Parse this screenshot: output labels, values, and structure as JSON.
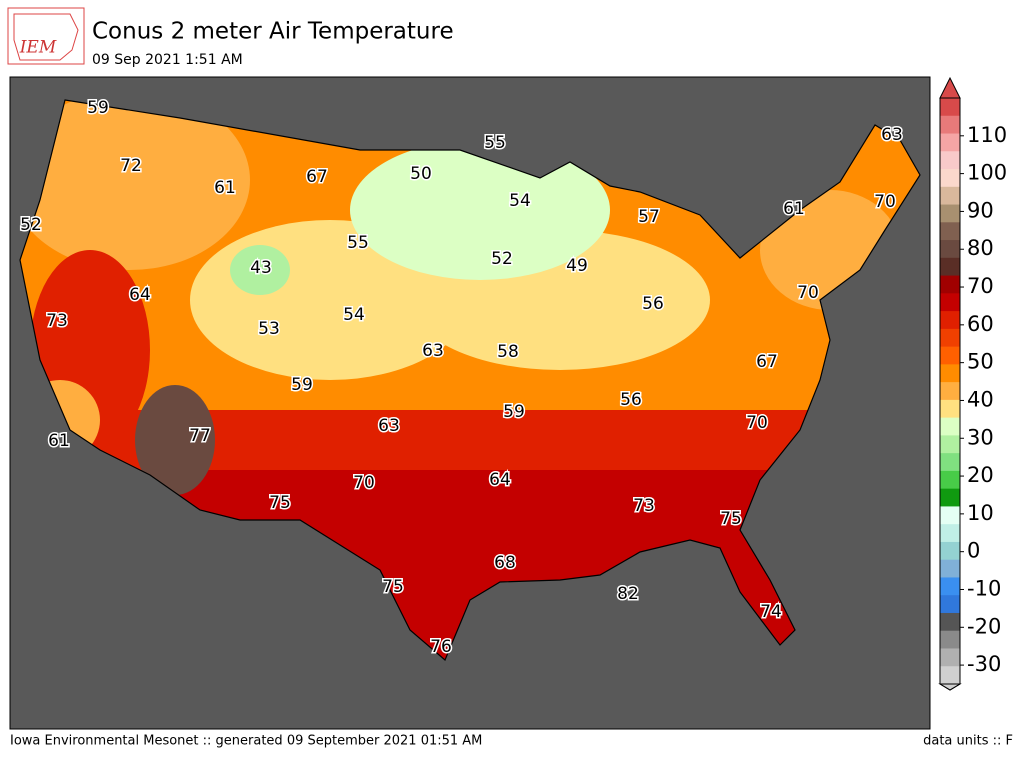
{
  "header": {
    "logo": "IEM",
    "title": "Conus 2 meter Air Temperature",
    "subtitle": "09 Sep 2021 1:51 AM"
  },
  "map": {
    "labels": [
      59,
      72,
      61,
      67,
      50,
      55,
      54,
      52,
      55,
      43,
      52,
      49,
      57,
      61,
      63,
      70,
      64,
      73,
      53,
      54,
      63,
      58,
      56,
      70,
      67,
      59,
      56,
      59,
      63,
      70,
      77,
      61,
      70,
      64,
      75,
      73,
      75,
      68,
      75,
      82,
      74,
      76
    ]
  },
  "colorbar": {
    "ylim": [
      -35,
      120
    ],
    "yticks": [
      -30,
      -20,
      -10,
      0,
      10,
      20,
      30,
      40,
      50,
      60,
      70,
      80,
      90,
      100,
      110
    ],
    "colors": [
      "#d84a4a",
      "#e87a7a",
      "#f5a5a5",
      "#f9caca",
      "#fbd8cc",
      "#d9b89c",
      "#a89070",
      "#806050",
      "#6a4a40",
      "#5a2e26",
      "#a00000",
      "#c40000",
      "#e02000",
      "#f04000",
      "#ff6000",
      "#ff8c00",
      "#ffae40",
      "#ffe080",
      "#dcffc4",
      "#b0f0a0",
      "#80e080",
      "#48cc48",
      "#109a10",
      "#e4fff4",
      "#c0efe6",
      "#94d2d2",
      "#80b0d8",
      "#3a8ff0",
      "#3078dc",
      "#555555",
      "#8a8a8a",
      "#b0b0b0",
      "#d0d0d0"
    ]
  },
  "footer": {
    "left": "Iowa Environmental Mesonet :: generated 09 September 2021 01:51 AM",
    "right": "data units :: F"
  }
}
